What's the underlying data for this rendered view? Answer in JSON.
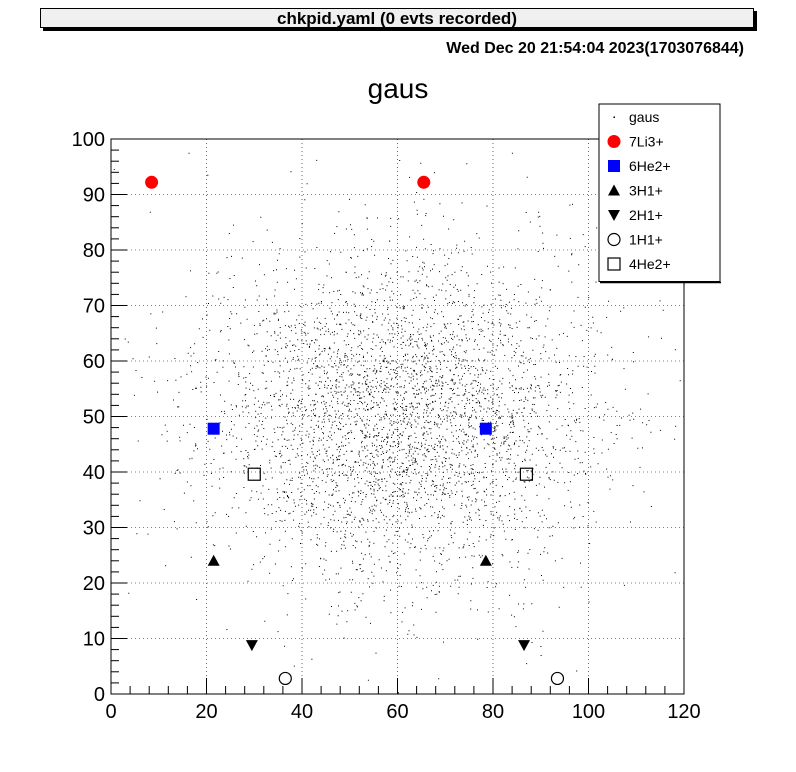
{
  "window": {
    "title": "chkpid.yaml   (0 evts recorded)",
    "timestamp": "Wed Dec 20 21:54:04 2023(1703076844)"
  },
  "chart_data": {
    "type": "scatter",
    "title": "gaus",
    "xlabel": "",
    "ylabel": "",
    "xlim": [
      0,
      120
    ],
    "ylim": [
      0,
      100
    ],
    "x_ticks": [
      0,
      20,
      40,
      60,
      80,
      100,
      120
    ],
    "y_ticks": [
      0,
      10,
      20,
      30,
      40,
      50,
      60,
      70,
      80,
      90,
      100
    ],
    "grid": true,
    "legend_position": "top-right",
    "background_distribution": {
      "name": "gaus",
      "kind": "2d-gaussian",
      "center": [
        60,
        50
      ],
      "sigma": [
        20,
        15
      ],
      "count": 4000,
      "color": "#000000"
    },
    "series": [
      {
        "name": "7Li3+",
        "marker": "filled-circle",
        "color": "#ff0000",
        "points": [
          [
            8.5,
            92.2
          ],
          [
            65.5,
            92.2
          ]
        ]
      },
      {
        "name": "6He2+",
        "marker": "filled-square",
        "color": "#0000ff",
        "points": [
          [
            21.5,
            47.8
          ],
          [
            78.5,
            47.8
          ]
        ]
      },
      {
        "name": "3H1+",
        "marker": "filled-triangle-up",
        "color": "#000000",
        "points": [
          [
            21.5,
            24.0
          ],
          [
            78.5,
            24.0
          ]
        ]
      },
      {
        "name": "2H1+",
        "marker": "filled-triangle-down",
        "color": "#000000",
        "points": [
          [
            29.5,
            8.8
          ],
          [
            86.5,
            8.8
          ]
        ]
      },
      {
        "name": "1H1+",
        "marker": "open-circle",
        "color": "#000000",
        "points": [
          [
            36.5,
            2.8
          ],
          [
            93.5,
            2.8
          ]
        ]
      },
      {
        "name": "4He2+",
        "marker": "open-square",
        "color": "#000000",
        "points": [
          [
            30.0,
            39.6
          ],
          [
            87.0,
            39.6
          ]
        ]
      }
    ]
  }
}
